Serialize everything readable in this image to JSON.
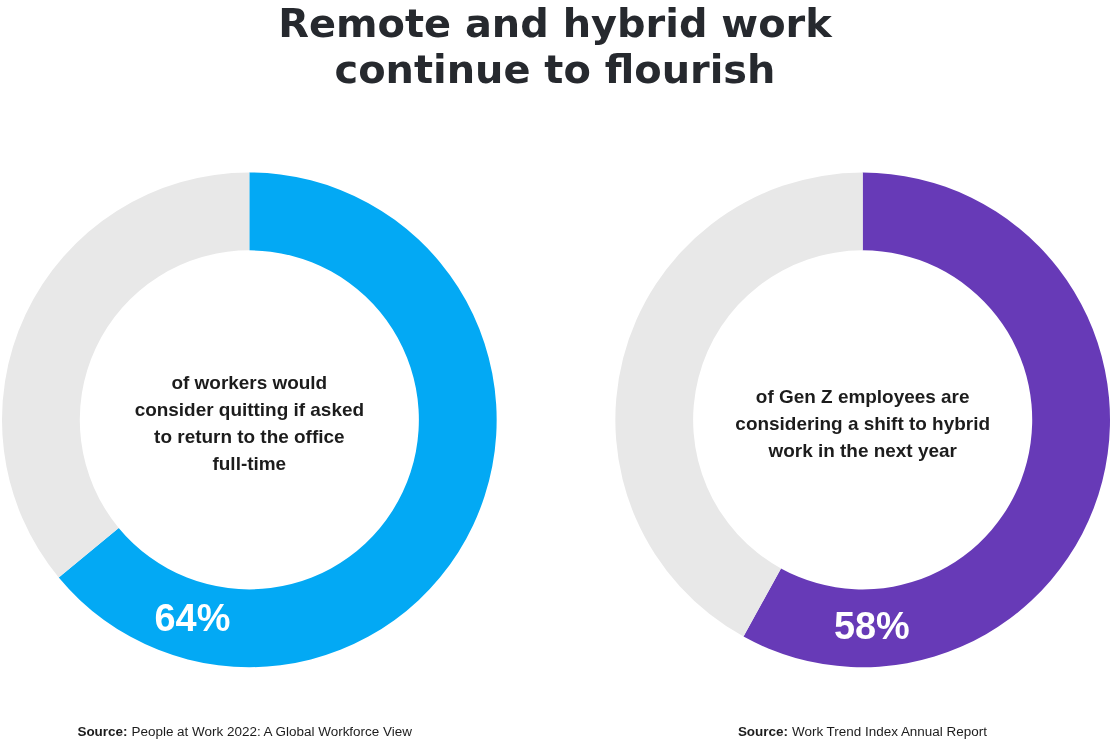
{
  "chart_data": [
    {
      "type": "donut",
      "title": "Remote and hybrid work\ncontinue to flourish",
      "categories": [
        null,
        null
      ],
      "values": [
        64,
        36
      ],
      "colors": [
        "#03a9f4",
        "#e8e8e8"
      ],
      "value_labels": [
        "64%",
        null
      ],
      "annotations": [
        "of workers would\nconsider quitting if asked\nto return to the office\nfull-time",
        "Source: People at Work 2022: A Global Workforce View"
      ]
    },
    {
      "type": "donut",
      "categories": [
        null,
        null
      ],
      "values": [
        58,
        42
      ],
      "colors": [
        "#673ab7",
        "#e8e8e8"
      ],
      "value_labels": [
        "58%",
        null
      ],
      "annotations": [
        "of Gen Z employees are\nconsidering a shift to hybrid\nwork in the next year",
        "Source: Work Trend Index Annual Report"
      ]
    }
  ]
}
